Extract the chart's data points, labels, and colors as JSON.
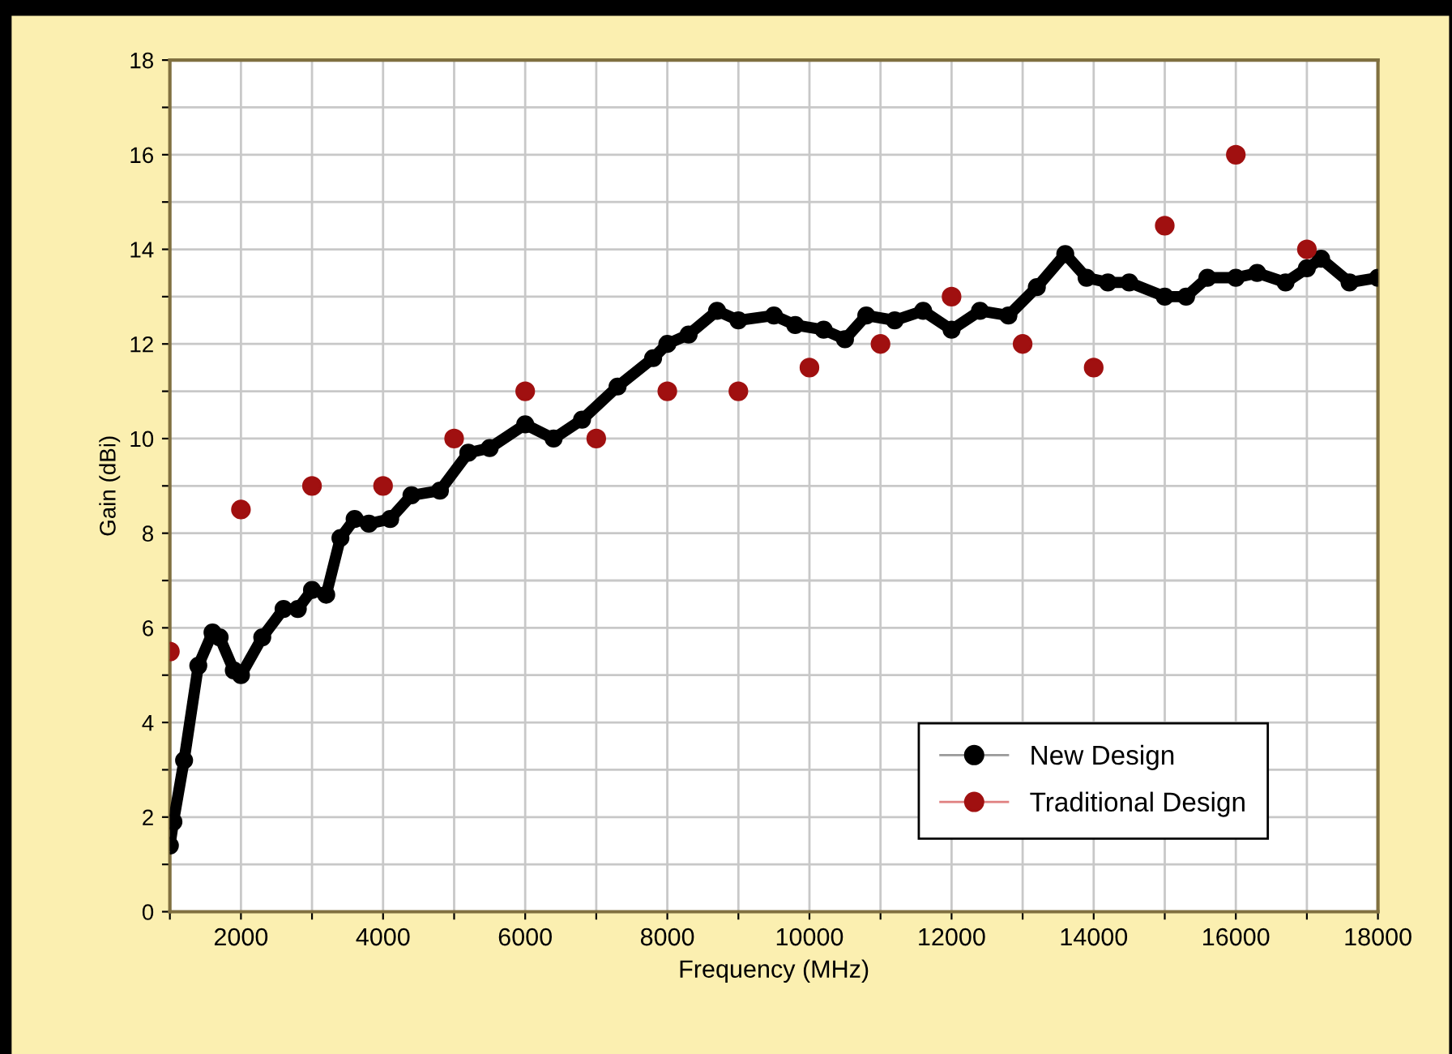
{
  "chart_data": {
    "type": "line",
    "xlabel": "Frequency (MHz)",
    "ylabel": "Gain (dBi)",
    "xlim": [
      1000,
      18000
    ],
    "ylim": [
      0,
      18
    ],
    "xticks": [
      {
        "value": 1000,
        "label": null
      },
      {
        "value": 2000,
        "label": "2000"
      },
      {
        "value": 3000,
        "label": null
      },
      {
        "value": 4000,
        "label": "4000"
      },
      {
        "value": 5000,
        "label": null
      },
      {
        "value": 6000,
        "label": "6000"
      },
      {
        "value": 7000,
        "label": null
      },
      {
        "value": 8000,
        "label": "8000"
      },
      {
        "value": 9000,
        "label": null
      },
      {
        "value": 10000,
        "label": "10000"
      },
      {
        "value": 11000,
        "label": null
      },
      {
        "value": 12000,
        "label": "12000"
      },
      {
        "value": 13000,
        "label": null
      },
      {
        "value": 14000,
        "label": "14000"
      },
      {
        "value": 15000,
        "label": null
      },
      {
        "value": 16000,
        "label": "16000"
      },
      {
        "value": 17000,
        "label": null
      },
      {
        "value": 18000,
        "label": "18000"
      }
    ],
    "yticks": [
      0,
      {
        "value": 1,
        "label": null
      },
      2,
      {
        "value": 3,
        "label": null
      },
      4,
      {
        "value": 5,
        "label": null
      },
      6,
      {
        "value": 7,
        "label": null
      },
      8,
      {
        "value": 9,
        "label": null
      },
      10,
      {
        "value": 11,
        "label": null
      },
      12,
      {
        "value": 13,
        "label": null
      },
      14,
      {
        "value": 15,
        "label": null
      },
      16,
      {
        "value": 17,
        "label": null
      },
      18
    ],
    "grid": true,
    "legend": "bottom right",
    "series": [
      {
        "name": "New Design",
        "color": "#000000",
        "marker": "circle",
        "x": [
          1000,
          1050,
          1200,
          1400,
          1600,
          1700,
          1900,
          2000,
          2300,
          2600,
          2800,
          3000,
          3200,
          3400,
          3600,
          3800,
          4100,
          4400,
          4800,
          5200,
          5500,
          6000,
          6400,
          6800,
          7300,
          7800,
          8000,
          8300,
          8700,
          9000,
          9500,
          9800,
          10200,
          10500,
          10800,
          11200,
          11600,
          12000,
          12400,
          12800,
          13200,
          13600,
          13900,
          14200,
          14500,
          15000,
          15300,
          15600,
          16000,
          16300,
          16700,
          17000,
          17200,
          17600,
          18000
        ],
        "values": [
          1.4,
          1.9,
          3.2,
          5.2,
          5.9,
          5.8,
          5.1,
          5.0,
          5.8,
          6.4,
          6.4,
          6.8,
          6.7,
          7.9,
          8.3,
          8.2,
          8.3,
          8.8,
          8.9,
          9.7,
          9.8,
          10.3,
          10.0,
          10.4,
          11.1,
          11.7,
          12.0,
          12.2,
          12.7,
          12.5,
          12.6,
          12.4,
          12.3,
          12.1,
          12.6,
          12.5,
          12.7,
          12.3,
          12.7,
          12.6,
          13.2,
          13.9,
          13.4,
          13.3,
          13.3,
          13.0,
          13.0,
          13.4,
          13.4,
          13.5,
          13.3,
          13.6,
          13.8,
          13.3,
          13.4
        ]
      },
      {
        "name": "Traditional Design",
        "type": "scatter",
        "color": "#a01010",
        "marker": "circle",
        "x": [
          1000,
          2000,
          3000,
          4000,
          5000,
          6000,
          7000,
          8000,
          9000,
          10000,
          11000,
          12000,
          13000,
          14000,
          15000,
          16000,
          17000
        ],
        "values": [
          5.5,
          8.5,
          9,
          9,
          10,
          11,
          10,
          11,
          11,
          11.5,
          12,
          13,
          12,
          11.5,
          14.5,
          16,
          14
        ]
      }
    ]
  }
}
